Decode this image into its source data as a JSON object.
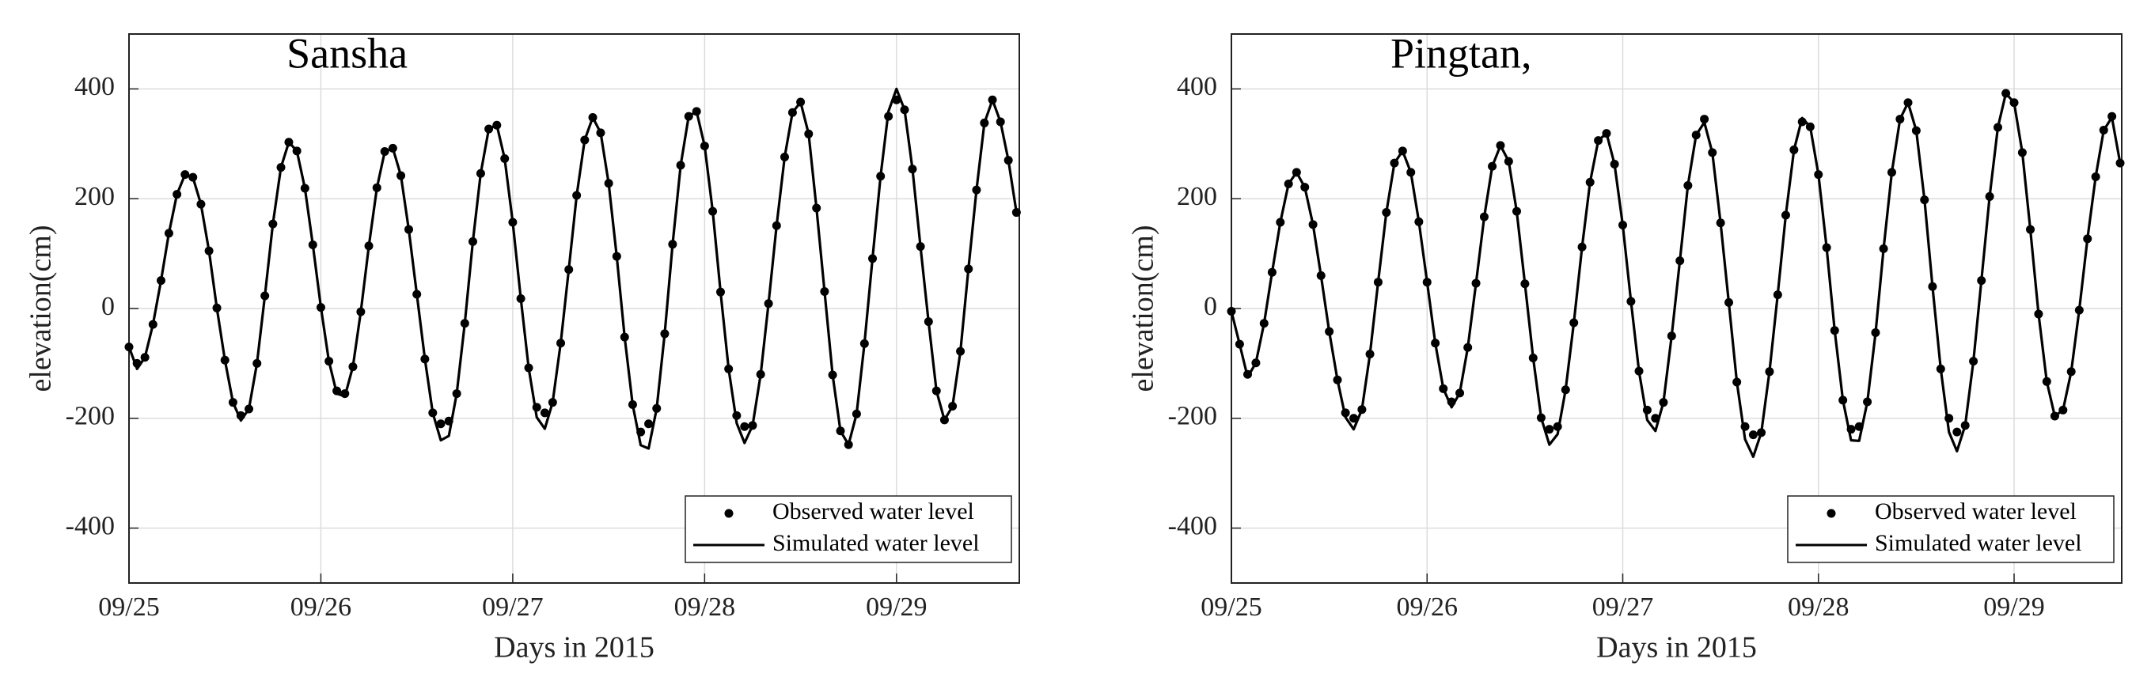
{
  "chart_data": [
    {
      "type": "line",
      "title": "Sansha",
      "xlabel": "Days in 2015",
      "ylabel": "elevation(cm)",
      "x": [
        268.0,
        268.042,
        268.083,
        268.125,
        268.167,
        268.208,
        268.25,
        268.292,
        268.333,
        268.375,
        268.417,
        268.458,
        268.5,
        268.542,
        268.583,
        268.625,
        268.667,
        268.708,
        268.75,
        268.792,
        268.833,
        268.875,
        268.917,
        268.958,
        269.0,
        269.042,
        269.083,
        269.125,
        269.167,
        269.208,
        269.25,
        269.292,
        269.333,
        269.375,
        269.417,
        269.458,
        269.5,
        269.542,
        269.583,
        269.625,
        269.667,
        269.708,
        269.75,
        269.792,
        269.833,
        269.875,
        269.917,
        269.958,
        270.0,
        270.042,
        270.083,
        270.125,
        270.167,
        270.208,
        270.25,
        270.292,
        270.333,
        270.375,
        270.417,
        270.458,
        270.5,
        270.542,
        270.583,
        270.625,
        270.667,
        270.708,
        270.75,
        270.792,
        270.833,
        270.875,
        270.917,
        270.958,
        271.0,
        271.042,
        271.083,
        271.125,
        271.167,
        271.208,
        271.25,
        271.292,
        271.333,
        271.375,
        271.417,
        271.458,
        271.5,
        271.542,
        271.583,
        271.625,
        271.667,
        271.708,
        271.75,
        271.792,
        271.833,
        271.875,
        271.917,
        271.958,
        272.0,
        272.042,
        272.083,
        272.125,
        272.167,
        272.208,
        272.25,
        272.292,
        272.333,
        272.375,
        272.417,
        272.458,
        272.5,
        272.542,
        272.583,
        272.625
      ],
      "series": [
        {
          "name": "Observed water level",
          "color": "#000000",
          "mode": "markers",
          "values": [
            -70,
            -100,
            -89,
            -29,
            51,
            137,
            208,
            244,
            239,
            190,
            105,
            1,
            -94,
            -171,
            -195,
            -183,
            -100,
            23,
            154,
            257,
            303,
            287,
            219,
            116,
            2,
            -96,
            -150,
            -155,
            -106,
            -6,
            114,
            220,
            286,
            292,
            242,
            144,
            26,
            -92,
            -190,
            -210,
            -205,
            -155,
            -27,
            122,
            246,
            327,
            334,
            273,
            157,
            18,
            -108,
            -180,
            -190,
            -171,
            -63,
            71,
            206,
            307,
            348,
            320,
            228,
            95,
            -52,
            -175,
            -225,
            -210,
            -182,
            -46,
            117,
            261,
            350,
            359,
            296,
            177,
            30,
            -110,
            -195,
            -215,
            -213,
            -120,
            9,
            151,
            276,
            357,
            376,
            318,
            183,
            31,
            -121,
            -223,
            -248,
            -192,
            -64,
            91,
            241,
            350,
            380,
            362,
            254,
            113,
            -24,
            -150,
            -203,
            -178,
            -78,
            72,
            216,
            338,
            380,
            340,
            270,
            175
          ]
        },
        {
          "name": "Simulated water level",
          "color": "#000000",
          "mode": "line",
          "values": [
            -70,
            -110,
            -89,
            -29,
            51,
            137,
            208,
            244,
            239,
            190,
            105,
            1,
            -94,
            -171,
            -204,
            -183,
            -100,
            23,
            154,
            257,
            303,
            287,
            219,
            116,
            2,
            -96,
            -155,
            -160,
            -106,
            -6,
            114,
            220,
            286,
            292,
            242,
            144,
            26,
            -92,
            -190,
            -240,
            -232,
            -155,
            -27,
            122,
            246,
            327,
            334,
            273,
            157,
            18,
            -108,
            -198,
            -219,
            -171,
            -63,
            71,
            206,
            307,
            348,
            320,
            228,
            95,
            -52,
            -175,
            -249,
            -255,
            -182,
            -46,
            117,
            261,
            350,
            359,
            296,
            177,
            30,
            -110,
            -209,
            -245,
            -213,
            -120,
            9,
            151,
            276,
            357,
            376,
            318,
            183,
            31,
            -121,
            -223,
            -248,
            -192,
            -64,
            91,
            241,
            359,
            400,
            362,
            254,
            113,
            -24,
            -150,
            -203,
            -178,
            -78,
            72,
            216,
            338,
            380,
            340,
            270,
            175
          ]
        }
      ],
      "xlim": [
        268,
        272.64
      ],
      "ylim": [
        -500,
        500
      ],
      "xticks": [
        {
          "value": 268,
          "label": "09/25"
        },
        {
          "value": 269,
          "label": "09/26"
        },
        {
          "value": 270,
          "label": "09/27"
        },
        {
          "value": 271,
          "label": "09/28"
        },
        {
          "value": 272,
          "label": "09/29"
        }
      ],
      "yticks": [
        -400,
        -200,
        0,
        200,
        400
      ],
      "grid": true,
      "legend": "lower right"
    },
    {
      "type": "line",
      "title": "Pingtan,",
      "xlabel": "Days in 2015",
      "ylabel": "elevation(cm)",
      "x": [
        268.0,
        268.042,
        268.083,
        268.125,
        268.167,
        268.208,
        268.25,
        268.292,
        268.333,
        268.375,
        268.417,
        268.458,
        268.5,
        268.542,
        268.583,
        268.625,
        268.667,
        268.708,
        268.75,
        268.792,
        268.833,
        268.875,
        268.917,
        268.958,
        269.0,
        269.042,
        269.083,
        269.125,
        269.167,
        269.208,
        269.25,
        269.292,
        269.333,
        269.375,
        269.417,
        269.458,
        269.5,
        269.542,
        269.583,
        269.625,
        269.667,
        269.708,
        269.75,
        269.792,
        269.833,
        269.875,
        269.917,
        269.958,
        270.0,
        270.042,
        270.083,
        270.125,
        270.167,
        270.208,
        270.25,
        270.292,
        270.333,
        270.375,
        270.417,
        270.458,
        270.5,
        270.542,
        270.583,
        270.625,
        270.667,
        270.708,
        270.75,
        270.792,
        270.833,
        270.875,
        270.917,
        270.958,
        271.0,
        271.042,
        271.083,
        271.125,
        271.167,
        271.208,
        271.25,
        271.292,
        271.333,
        271.375,
        271.417,
        271.458,
        271.5,
        271.542,
        271.583,
        271.625,
        271.667,
        271.708,
        271.75,
        271.792,
        271.833,
        271.875,
        271.917,
        271.958,
        272.0,
        272.042,
        272.083,
        272.125,
        272.167,
        272.208,
        272.25,
        272.292,
        272.333,
        272.375,
        272.417,
        272.458,
        272.5,
        272.542
      ],
      "series": [
        {
          "name": "Observed water level",
          "color": "#000000",
          "mode": "markers",
          "values": [
            -5,
            -65,
            -120,
            -99,
            -27,
            66,
            157,
            227,
            248,
            221,
            153,
            60,
            -42,
            -130,
            -190,
            -200,
            -184,
            -83,
            48,
            175,
            265,
            287,
            248,
            158,
            48,
            -63,
            -146,
            -170,
            -154,
            -71,
            46,
            167,
            259,
            297,
            268,
            177,
            45,
            -90,
            -199,
            -220,
            -215,
            -148,
            -26,
            112,
            230,
            306,
            319,
            263,
            152,
            13,
            -114,
            -185,
            -200,
            -171,
            -50,
            87,
            224,
            316,
            345,
            284,
            156,
            11,
            -134,
            -215,
            -230,
            -226,
            -115,
            25,
            170,
            289,
            340,
            331,
            244,
            111,
            -40,
            -167,
            -220,
            -215,
            -170,
            -44,
            109,
            248,
            345,
            375,
            324,
            198,
            40,
            -110,
            -200,
            -225,
            -213,
            -96,
            51,
            204,
            330,
            392,
            375,
            284,
            144,
            -10,
            -133,
            -196,
            -185,
            -115,
            -3,
            127,
            240,
            325,
            350,
            265
          ]
        },
        {
          "name": "Simulated water level",
          "color": "#000000",
          "mode": "line",
          "values": [
            -5,
            -65,
            -125,
            -99,
            -27,
            66,
            157,
            227,
            248,
            221,
            153,
            60,
            -42,
            -130,
            -198,
            -220,
            -184,
            -83,
            48,
            175,
            265,
            287,
            248,
            158,
            48,
            -63,
            -146,
            -180,
            -154,
            -71,
            46,
            167,
            259,
            297,
            268,
            177,
            45,
            -90,
            -199,
            -248,
            -229,
            -148,
            -26,
            112,
            230,
            306,
            319,
            263,
            152,
            13,
            -114,
            -203,
            -223,
            -171,
            -50,
            87,
            224,
            316,
            339,
            284,
            156,
            11,
            -134,
            -238,
            -270,
            -226,
            -115,
            25,
            170,
            289,
            347,
            331,
            244,
            111,
            -40,
            -167,
            -240,
            -241,
            -170,
            -44,
            109,
            248,
            345,
            375,
            324,
            198,
            40,
            -110,
            -225,
            -260,
            -213,
            -96,
            51,
            204,
            330,
            392,
            375,
            284,
            144,
            -10,
            -133,
            -196,
            -185,
            -115,
            -3,
            127,
            240,
            325,
            348,
            265
          ]
        }
      ],
      "xlim": [
        268,
        272.55
      ],
      "ylim": [
        -500,
        500
      ],
      "xticks": [
        {
          "value": 268,
          "label": "09/25"
        },
        {
          "value": 269,
          "label": "09/26"
        },
        {
          "value": 270,
          "label": "09/27"
        },
        {
          "value": 271,
          "label": "09/28"
        },
        {
          "value": 272,
          "label": "09/29"
        }
      ],
      "yticks": [
        -400,
        -200,
        0,
        200,
        400
      ],
      "grid": true,
      "legend": "lower right"
    }
  ]
}
